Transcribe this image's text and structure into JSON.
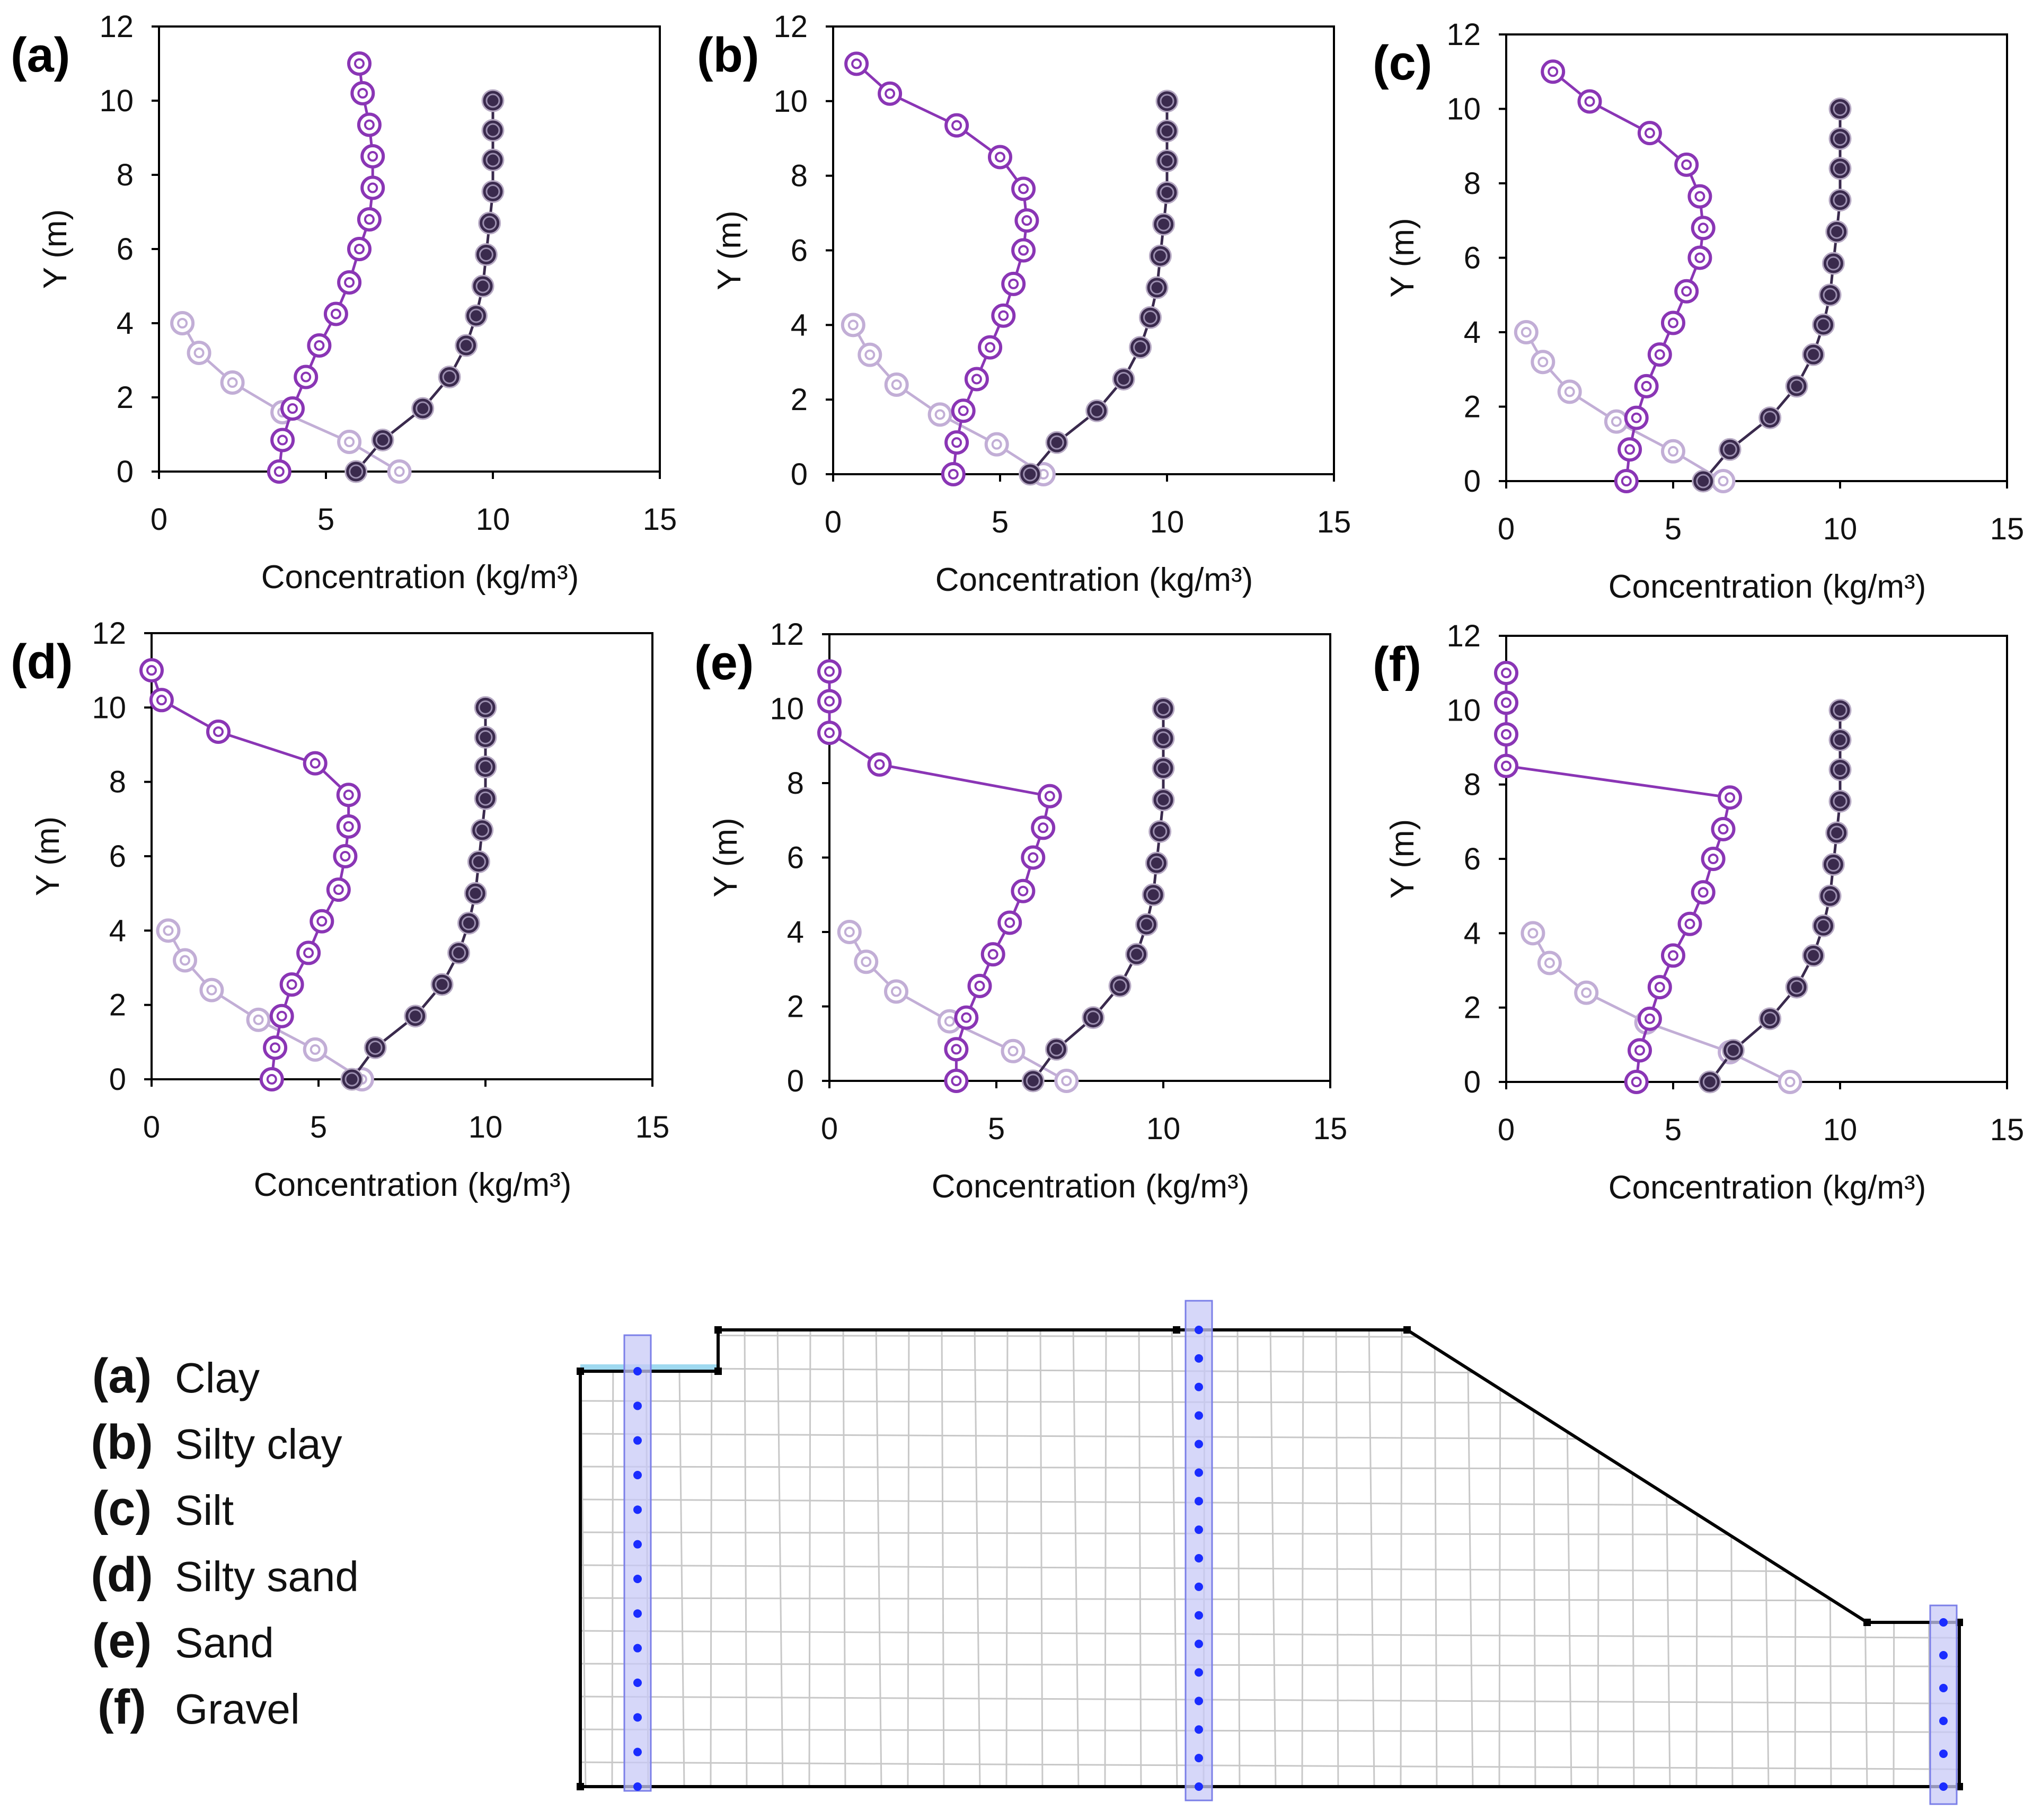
{
  "chart_data": [
    {
      "panel": "(a)",
      "type": "line",
      "xlabel": "Concentration (kg/m³)",
      "ylabel": "Y (m)",
      "xlim": [
        0,
        15
      ],
      "ylim": [
        0,
        12
      ],
      "xticks": [
        0,
        5,
        10,
        15
      ],
      "yticks": [
        0,
        2,
        4,
        6,
        8,
        10,
        12
      ],
      "series": [
        {
          "color": "#c2aed6",
          "x": [
            0.7,
            1.2,
            2.2,
            3.7,
            5.7,
            7.2
          ],
          "y": [
            4.0,
            3.2,
            2.4,
            1.6,
            0.8,
            0.0
          ]
        },
        {
          "color": "#8a35b5",
          "x": [
            3.6,
            3.7,
            4.0,
            4.4,
            4.8,
            5.3,
            5.7,
            6.0,
            6.3,
            6.4,
            6.4,
            6.3,
            6.1,
            6.0
          ],
          "y": [
            0.0,
            0.85,
            1.7,
            2.55,
            3.4,
            4.25,
            5.1,
            6.0,
            6.8,
            7.65,
            8.5,
            9.35,
            10.2,
            11.0
          ]
        },
        {
          "color": "#3a2a4d",
          "x": [
            5.9,
            6.7,
            7.9,
            8.7,
            9.2,
            9.5,
            9.7,
            9.8,
            9.9,
            10.0,
            10.0,
            10.0,
            10.0
          ],
          "y": [
            0.0,
            0.85,
            1.7,
            2.55,
            3.4,
            4.2,
            5.0,
            5.85,
            6.7,
            7.55,
            8.4,
            9.2,
            10.0
          ]
        }
      ]
    },
    {
      "panel": "(b)",
      "type": "line",
      "xlabel": "Concentration (kg/m³)",
      "ylabel": "Y (m)",
      "xlim": [
        0,
        15
      ],
      "ylim": [
        0,
        12
      ],
      "xticks": [
        0,
        5,
        10,
        15
      ],
      "yticks": [
        0,
        2,
        4,
        6,
        8,
        10,
        12
      ],
      "series": [
        {
          "color": "#c2aed6",
          "x": [
            0.6,
            1.1,
            1.9,
            3.2,
            4.9,
            6.3
          ],
          "y": [
            4.0,
            3.2,
            2.4,
            1.6,
            0.8,
            0.0
          ]
        },
        {
          "color": "#8a35b5",
          "x": [
            3.6,
            3.7,
            3.9,
            4.3,
            4.7,
            5.1,
            5.4,
            5.7,
            5.8,
            5.7,
            5.0,
            3.7,
            1.7,
            0.7
          ],
          "y": [
            0.0,
            0.85,
            1.7,
            2.55,
            3.4,
            4.25,
            5.1,
            6.0,
            6.8,
            7.65,
            8.5,
            9.35,
            10.2,
            11.0
          ]
        },
        {
          "color": "#3a2a4d",
          "x": [
            5.9,
            6.7,
            7.9,
            8.7,
            9.2,
            9.5,
            9.7,
            9.8,
            9.9,
            10.0,
            10.0,
            10.0,
            10.0
          ],
          "y": [
            0.0,
            0.85,
            1.7,
            2.55,
            3.4,
            4.2,
            5.0,
            5.85,
            6.7,
            7.55,
            8.4,
            9.2,
            10.0
          ]
        }
      ]
    },
    {
      "panel": "(c)",
      "type": "line",
      "xlabel": "Concentration (kg/m³)",
      "ylabel": "Y (m)",
      "xlim": [
        0,
        15
      ],
      "ylim": [
        0,
        12
      ],
      "xticks": [
        0,
        5,
        10,
        15
      ],
      "yticks": [
        0,
        2,
        4,
        6,
        8,
        10,
        12
      ],
      "series": [
        {
          "color": "#c2aed6",
          "x": [
            0.6,
            1.1,
            1.9,
            3.3,
            5.0,
            6.5
          ],
          "y": [
            4.0,
            3.2,
            2.4,
            1.6,
            0.8,
            0.0
          ]
        },
        {
          "color": "#8a35b5",
          "x": [
            3.6,
            3.7,
            3.9,
            4.2,
            4.6,
            5.0,
            5.4,
            5.8,
            5.9,
            5.8,
            5.4,
            4.3,
            2.5,
            1.4
          ],
          "y": [
            0.0,
            0.85,
            1.7,
            2.55,
            3.4,
            4.25,
            5.1,
            6.0,
            6.8,
            7.65,
            8.5,
            9.35,
            10.2,
            11.0
          ]
        },
        {
          "color": "#3a2a4d",
          "x": [
            5.9,
            6.7,
            7.9,
            8.7,
            9.2,
            9.5,
            9.7,
            9.8,
            9.9,
            10.0,
            10.0,
            10.0,
            10.0
          ],
          "y": [
            0.0,
            0.85,
            1.7,
            2.55,
            3.4,
            4.2,
            5.0,
            5.85,
            6.7,
            7.55,
            8.4,
            9.2,
            10.0
          ]
        }
      ]
    },
    {
      "panel": "(d)",
      "type": "line",
      "xlabel": "Concentration (kg/m³)",
      "ylabel": "Y (m)",
      "xlim": [
        0,
        15
      ],
      "ylim": [
        0,
        12
      ],
      "xticks": [
        0,
        5,
        10,
        15
      ],
      "yticks": [
        0,
        2,
        4,
        6,
        8,
        10,
        12
      ],
      "series": [
        {
          "color": "#c2aed6",
          "x": [
            0.5,
            1.0,
            1.8,
            3.2,
            4.9,
            6.3
          ],
          "y": [
            4.0,
            3.2,
            2.4,
            1.6,
            0.8,
            0.0
          ]
        },
        {
          "color": "#8a35b5",
          "x": [
            3.6,
            3.7,
            3.9,
            4.2,
            4.7,
            5.1,
            5.6,
            5.8,
            5.9,
            5.9,
            4.9,
            2.0,
            0.3,
            0.0
          ],
          "y": [
            0.0,
            0.85,
            1.7,
            2.55,
            3.4,
            4.25,
            5.1,
            6.0,
            6.8,
            7.65,
            8.5,
            9.35,
            10.2,
            11.0
          ]
        },
        {
          "color": "#3a2a4d",
          "x": [
            6.0,
            6.7,
            7.9,
            8.7,
            9.2,
            9.5,
            9.7,
            9.8,
            9.9,
            10.0,
            10.0,
            10.0,
            10.0
          ],
          "y": [
            0.0,
            0.85,
            1.7,
            2.55,
            3.4,
            4.2,
            5.0,
            5.85,
            6.7,
            7.55,
            8.4,
            9.2,
            10.0
          ]
        }
      ]
    },
    {
      "panel": "(e)",
      "type": "line",
      "xlabel": "Concentration (kg/m³)",
      "ylabel": "Y (m)",
      "xlim": [
        0,
        15
      ],
      "ylim": [
        0,
        12
      ],
      "xticks": [
        0,
        5,
        10,
        15
      ],
      "yticks": [
        0,
        2,
        4,
        6,
        8,
        10,
        12
      ],
      "series": [
        {
          "color": "#c2aed6",
          "x": [
            0.6,
            1.1,
            2.0,
            3.6,
            5.5,
            7.1
          ],
          "y": [
            4.0,
            3.2,
            2.4,
            1.6,
            0.8,
            0.0
          ]
        },
        {
          "color": "#8a35b5",
          "x": [
            3.8,
            3.8,
            4.1,
            4.5,
            4.9,
            5.4,
            5.8,
            6.1,
            6.4,
            6.6,
            1.5,
            0.0,
            0.0,
            0.0
          ],
          "y": [
            0.0,
            0.85,
            1.7,
            2.55,
            3.4,
            4.25,
            5.1,
            6.0,
            6.8,
            7.65,
            8.5,
            9.35,
            10.2,
            11.0
          ]
        },
        {
          "color": "#3a2a4d",
          "x": [
            6.1,
            6.8,
            7.9,
            8.7,
            9.2,
            9.5,
            9.7,
            9.8,
            9.9,
            10.0,
            10.0,
            10.0,
            10.0
          ],
          "y": [
            0.0,
            0.85,
            1.7,
            2.55,
            3.4,
            4.2,
            5.0,
            5.85,
            6.7,
            7.55,
            8.4,
            9.2,
            10.0
          ]
        }
      ]
    },
    {
      "panel": "(f)",
      "type": "line",
      "xlabel": "Concentration (kg/m³)",
      "ylabel": "Y (m)",
      "xlim": [
        0,
        15
      ],
      "ylim": [
        0,
        12
      ],
      "xticks": [
        0,
        5,
        10,
        15
      ],
      "yticks": [
        0,
        2,
        4,
        6,
        8,
        10,
        12
      ],
      "series": [
        {
          "color": "#c2aed6",
          "x": [
            0.8,
            1.3,
            2.4,
            4.2,
            6.7,
            8.5
          ],
          "y": [
            4.0,
            3.2,
            2.4,
            1.6,
            0.8,
            0.0
          ]
        },
        {
          "color": "#8a35b5",
          "x": [
            3.9,
            4.0,
            4.3,
            4.6,
            5.0,
            5.5,
            5.9,
            6.2,
            6.5,
            6.7,
            0.0,
            0.0,
            0.0,
            0.0
          ],
          "y": [
            0.0,
            0.85,
            1.7,
            2.55,
            3.4,
            4.25,
            5.1,
            6.0,
            6.8,
            7.65,
            8.5,
            9.35,
            10.2,
            11.0
          ]
        },
        {
          "color": "#3a2a4d",
          "x": [
            6.1,
            6.8,
            7.9,
            8.7,
            9.2,
            9.5,
            9.7,
            9.8,
            9.9,
            10.0,
            10.0,
            10.0,
            10.0
          ],
          "y": [
            0.0,
            0.85,
            1.7,
            2.55,
            3.4,
            4.2,
            5.0,
            5.85,
            6.7,
            7.55,
            8.4,
            9.2,
            10.0
          ]
        }
      ]
    }
  ],
  "legend": [
    {
      "key": "(a)",
      "label": "Clay"
    },
    {
      "key": "(b)",
      "label": "Silty clay"
    },
    {
      "key": "(c)",
      "label": "Silt"
    },
    {
      "key": "(d)",
      "label": "Silty sand"
    },
    {
      "key": "(e)",
      "label": "Sand"
    },
    {
      "key": "(f)",
      "label": "Gravel"
    }
  ],
  "colors": {
    "axis": "#000000",
    "mesh_line": "#c8c8c8",
    "boundary": "#000000",
    "water": "#9fd9f0",
    "column_fill": "#c8caf7",
    "column_stroke": "#7b7fe8",
    "node": "#1a2cff"
  }
}
